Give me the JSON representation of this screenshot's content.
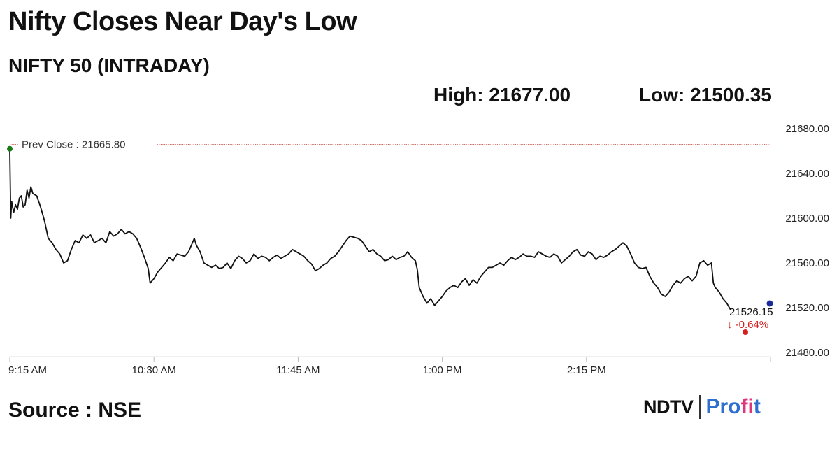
{
  "header": {
    "title": "Nifty Closes Near Day's Low",
    "subtitle": "NIFTY 50 (INTRADAY)",
    "high": "High: 21677.00",
    "low": "Low: 21500.35"
  },
  "footer": {
    "source": "Source : NSE",
    "brand_ndtv": "NDTV",
    "brand_profit_a": "Pro",
    "brand_profit_b": "fi",
    "brand_profit_c": "t"
  },
  "colors": {
    "line": "#111111",
    "prev_close_line": "#c0392b",
    "start_dot": "#1a7a1a",
    "end_dot": "#1a2a9a",
    "change": "#d42020",
    "brand_blue": "#2f6fcf",
    "brand_pink": "#e0357a"
  },
  "chart_data": {
    "type": "line",
    "title": "NIFTY 50 (INTRADAY)",
    "x_ticks": [
      "9:15 AM",
      "10:30 AM",
      "11:45 AM",
      "1:00 PM",
      "2:15 PM"
    ],
    "x_tick_minutes": [
      0,
      75,
      150,
      225,
      300
    ],
    "y_ticks": [
      "21480.00",
      "21520.00",
      "21560.00",
      "21600.00",
      "21640.00",
      "21680.00"
    ],
    "y_tick_values": [
      21480,
      21520,
      21560,
      21600,
      21640,
      21680
    ],
    "ylim": [
      21480,
      21680
    ],
    "x_range_minutes": [
      0,
      375
    ],
    "prev_close_label": "Prev Close : 21665.80",
    "prev_close": 21665.8,
    "last_value_label": "21526.15",
    "change_label": "↓ -0.64%",
    "series": [
      {
        "points": [
          [
            0,
            21660
          ],
          [
            0.5,
            21600
          ],
          [
            1,
            21615
          ],
          [
            2,
            21605
          ],
          [
            3,
            21612
          ],
          [
            4,
            21608
          ],
          [
            5,
            21618
          ],
          [
            6,
            21620
          ],
          [
            7,
            21610
          ],
          [
            8,
            21612
          ],
          [
            9,
            21625
          ],
          [
            10,
            21618
          ],
          [
            11,
            21628
          ],
          [
            12,
            21622
          ],
          [
            14,
            21620
          ],
          [
            16,
            21610
          ],
          [
            18,
            21598
          ],
          [
            20,
            21582
          ],
          [
            22,
            21578
          ],
          [
            24,
            21572
          ],
          [
            26,
            21568
          ],
          [
            28,
            21560
          ],
          [
            30,
            21562
          ],
          [
            32,
            21572
          ],
          [
            34,
            21580
          ],
          [
            36,
            21578
          ],
          [
            38,
            21585
          ],
          [
            40,
            21582
          ],
          [
            42,
            21585
          ],
          [
            44,
            21578
          ],
          [
            46,
            21580
          ],
          [
            48,
            21582
          ],
          [
            50,
            21578
          ],
          [
            52,
            21588
          ],
          [
            54,
            21584
          ],
          [
            56,
            21586
          ],
          [
            58,
            21590
          ],
          [
            60,
            21586
          ],
          [
            62,
            21588
          ],
          [
            64,
            21586
          ],
          [
            66,
            21582
          ],
          [
            68,
            21574
          ],
          [
            70,
            21565
          ],
          [
            72,
            21555
          ],
          [
            73,
            21542
          ],
          [
            75,
            21546
          ],
          [
            77,
            21552
          ],
          [
            79,
            21556
          ],
          [
            81,
            21560
          ],
          [
            83,
            21565
          ],
          [
            85,
            21562
          ],
          [
            87,
            21568
          ],
          [
            89,
            21567
          ],
          [
            91,
            21566
          ],
          [
            93,
            21570
          ],
          [
            95,
            21578
          ],
          [
            96,
            21582
          ],
          [
            97,
            21576
          ],
          [
            99,
            21570
          ],
          [
            101,
            21560
          ],
          [
            103,
            21558
          ],
          [
            105,
            21556
          ],
          [
            107,
            21558
          ],
          [
            109,
            21555
          ],
          [
            111,
            21556
          ],
          [
            113,
            21560
          ],
          [
            115,
            21555
          ],
          [
            117,
            21562
          ],
          [
            119,
            21566
          ],
          [
            121,
            21564
          ],
          [
            123,
            21560
          ],
          [
            125,
            21562
          ],
          [
            127,
            21568
          ],
          [
            129,
            21564
          ],
          [
            131,
            21566
          ],
          [
            133,
            21565
          ],
          [
            135,
            21562
          ],
          [
            137,
            21565
          ],
          [
            139,
            21567
          ],
          [
            141,
            21564
          ],
          [
            143,
            21566
          ],
          [
            145,
            21568
          ],
          [
            147,
            21572
          ],
          [
            149,
            21570
          ],
          [
            151,
            21568
          ],
          [
            153,
            21566
          ],
          [
            155,
            21562
          ],
          [
            157,
            21559
          ],
          [
            159,
            21553
          ],
          [
            161,
            21555
          ],
          [
            163,
            21558
          ],
          [
            165,
            21560
          ],
          [
            167,
            21564
          ],
          [
            169,
            21566
          ],
          [
            171,
            21570
          ],
          [
            173,
            21575
          ],
          [
            175,
            21580
          ],
          [
            177,
            21584
          ],
          [
            179,
            21583
          ],
          [
            181,
            21582
          ],
          [
            183,
            21580
          ],
          [
            185,
            21575
          ],
          [
            187,
            21570
          ],
          [
            189,
            21572
          ],
          [
            191,
            21568
          ],
          [
            193,
            21566
          ],
          [
            195,
            21562
          ],
          [
            197,
            21563
          ],
          [
            199,
            21566
          ],
          [
            201,
            21563
          ],
          [
            203,
            21565
          ],
          [
            205,
            21566
          ],
          [
            207,
            21570
          ],
          [
            209,
            21565
          ],
          [
            211,
            21562
          ],
          [
            212,
            21554
          ],
          [
            213,
            21538
          ],
          [
            215,
            21530
          ],
          [
            217,
            21524
          ],
          [
            219,
            21528
          ],
          [
            221,
            21522
          ],
          [
            223,
            21526
          ],
          [
            225,
            21530
          ],
          [
            227,
            21535
          ],
          [
            229,
            21538
          ],
          [
            231,
            21540
          ],
          [
            233,
            21538
          ],
          [
            235,
            21543
          ],
          [
            237,
            21546
          ],
          [
            239,
            21540
          ],
          [
            241,
            21545
          ],
          [
            243,
            21542
          ],
          [
            245,
            21548
          ],
          [
            247,
            21552
          ],
          [
            249,
            21556
          ],
          [
            251,
            21556
          ],
          [
            253,
            21558
          ],
          [
            255,
            21560
          ],
          [
            257,
            21558
          ],
          [
            259,
            21562
          ],
          [
            261,
            21565
          ],
          [
            263,
            21563
          ],
          [
            265,
            21565
          ],
          [
            267,
            21568
          ],
          [
            269,
            21566
          ],
          [
            271,
            21566
          ],
          [
            273,
            21565
          ],
          [
            275,
            21570
          ],
          [
            277,
            21568
          ],
          [
            279,
            21566
          ],
          [
            281,
            21565
          ],
          [
            283,
            21568
          ],
          [
            285,
            21566
          ],
          [
            287,
            21560
          ],
          [
            289,
            21563
          ],
          [
            291,
            21566
          ],
          [
            293,
            21570
          ],
          [
            295,
            21572
          ],
          [
            297,
            21567
          ],
          [
            299,
            21566
          ],
          [
            301,
            21570
          ],
          [
            303,
            21568
          ],
          [
            305,
            21563
          ],
          [
            307,
            21566
          ],
          [
            309,
            21565
          ],
          [
            311,
            21567
          ],
          [
            313,
            21570
          ],
          [
            315,
            21572
          ],
          [
            317,
            21575
          ],
          [
            319,
            21578
          ],
          [
            321,
            21575
          ],
          [
            323,
            21568
          ],
          [
            325,
            21560
          ],
          [
            327,
            21556
          ],
          [
            329,
            21555
          ],
          [
            331,
            21556
          ],
          [
            333,
            21548
          ],
          [
            335,
            21542
          ],
          [
            337,
            21538
          ],
          [
            339,
            21532
          ],
          [
            341,
            21530
          ],
          [
            343,
            21534
          ],
          [
            345,
            21540
          ],
          [
            347,
            21544
          ],
          [
            349,
            21542
          ],
          [
            351,
            21546
          ],
          [
            353,
            21548
          ],
          [
            355,
            21544
          ],
          [
            357,
            21548
          ],
          [
            359,
            21560
          ],
          [
            361,
            21562
          ],
          [
            363,
            21558
          ],
          [
            365,
            21560
          ],
          [
            366,
            21542
          ],
          [
            367,
            21538
          ],
          [
            369,
            21534
          ],
          [
            371,
            21528
          ],
          [
            373,
            21524
          ],
          [
            375,
            21518
          ]
        ]
      }
    ],
    "grid": false
  }
}
